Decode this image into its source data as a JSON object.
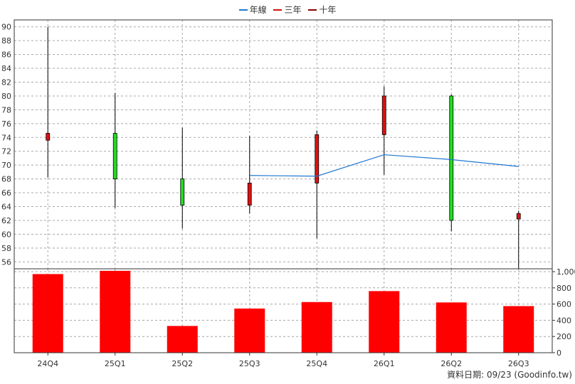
{
  "chart_data": {
    "type": "candlestick-bar-combo",
    "categories": [
      "24Q4",
      "25Q1",
      "25Q2",
      "25Q3",
      "25Q4",
      "26Q1",
      "26Q2",
      "26Q3"
    ],
    "legend": [
      {
        "label": "年線",
        "color": "#1f77d0"
      },
      {
        "label": "三年",
        "color": "#d01010"
      },
      {
        "label": "十年",
        "color": "#8b0000"
      }
    ],
    "price": {
      "ylim": [
        55,
        91
      ],
      "ticks": [
        56,
        58,
        60,
        62,
        64,
        66,
        68,
        70,
        72,
        74,
        76,
        78,
        80,
        82,
        84,
        86,
        88,
        90
      ],
      "candles": [
        {
          "open": 73.6,
          "close": 74.6,
          "high": 90.0,
          "low": 68.2
        },
        {
          "open": 74.6,
          "close": 68.0,
          "high": 80.4,
          "low": 63.8
        },
        {
          "open": 68.0,
          "close": 64.2,
          "high": 75.4,
          "low": 60.8
        },
        {
          "open": 64.2,
          "close": 67.4,
          "high": 74.2,
          "low": 63.0
        },
        {
          "open": 67.4,
          "close": 74.4,
          "high": 75.0,
          "low": 59.4
        },
        {
          "open": 74.4,
          "close": 80.0,
          "high": 81.4,
          "low": 68.6
        },
        {
          "open": 80.0,
          "close": 62.0,
          "high": 80.2,
          "low": 60.4
        },
        {
          "open": 62.2,
          "close": 63.0,
          "high": 63.4,
          "low": 55.0
        }
      ],
      "ma_line": [
        null,
        null,
        null,
        68.5,
        68.4,
        71.5,
        70.8,
        69.8
      ],
      "up_color": "#dd1111",
      "down_color": "#22dd22",
      "ma_color": "#1f77d0"
    },
    "volume": {
      "ylim": [
        0,
        1000
      ],
      "ticks": [
        0,
        200,
        400,
        600,
        800,
        1000
      ],
      "tick_labels": [
        "0",
        "200",
        "400",
        "600",
        "800",
        "1,000"
      ],
      "values": [
        970,
        1010,
        330,
        545,
        625,
        760,
        620,
        575
      ],
      "color": "#ff0000"
    },
    "grid": true
  },
  "footer": "資料日期: 09/23  (Goodinfo.tw)"
}
